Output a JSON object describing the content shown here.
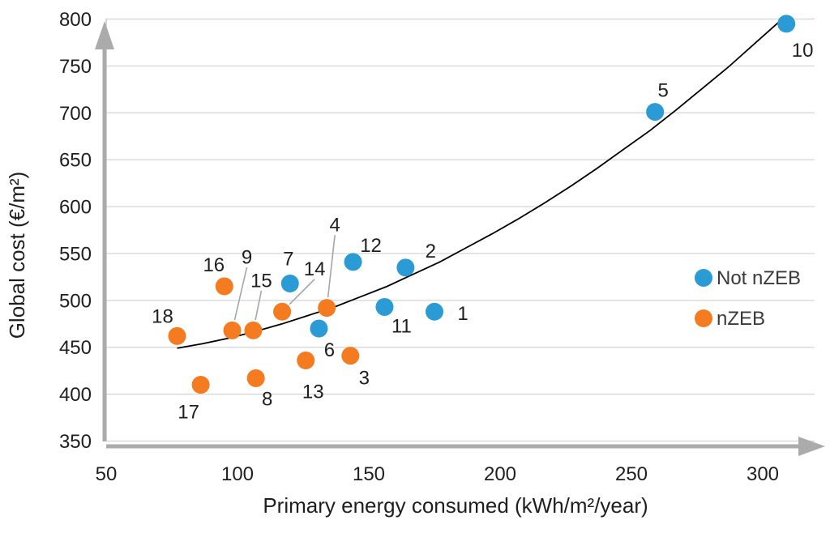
{
  "chart_data": {
    "type": "scatter",
    "title": "",
    "xlabel": "Primary energy consumed (kWh/m²/year)",
    "ylabel": "Global cost (€/m²)",
    "x_ticks": [
      50,
      100,
      150,
      200,
      250,
      300
    ],
    "y_ticks": [
      350,
      400,
      450,
      500,
      550,
      600,
      650,
      700,
      750,
      800
    ],
    "xlim": [
      50,
      310
    ],
    "ylim": [
      350,
      800
    ],
    "grid": "horizontal-only",
    "legend_position": "middle-right",
    "colors": {
      "not_nzeb": "#2b9bd6",
      "nzeb": "#f47b20",
      "gridline": "#d9d9d9",
      "axis_line": "#bfbfbf",
      "axis_arrow": "#ababab",
      "trendline": "#000000",
      "leader_line": "#a6a6a6",
      "text": "#1f1f1f"
    },
    "series": [
      {
        "name": "Not nZEB",
        "color": "#2b9bd6",
        "points": [
          {
            "id": "1",
            "x": 175,
            "y": 488,
            "label_dx": 35,
            "label_dy": 2,
            "leader": false
          },
          {
            "id": "2",
            "x": 164,
            "y": 535,
            "label_dx": 31,
            "label_dy": -21,
            "leader": false
          },
          {
            "id": "5",
            "x": 259,
            "y": 701,
            "label_dx": 10,
            "label_dy": -27,
            "leader": false
          },
          {
            "id": "6",
            "x": 131,
            "y": 470,
            "label_dx": 13,
            "label_dy": 26,
            "leader": false
          },
          {
            "id": "7",
            "x": 120,
            "y": 518,
            "label_dx": -2,
            "label_dy": -31,
            "leader": false
          },
          {
            "id": "10",
            "x": 309,
            "y": 795,
            "label_dx": 20,
            "label_dy": 32,
            "leader": false
          },
          {
            "id": "11",
            "x": 156,
            "y": 493,
            "label_dx": 21,
            "label_dy": 23,
            "leader": false
          },
          {
            "id": "12",
            "x": 144,
            "y": 541,
            "label_dx": 22,
            "label_dy": -21,
            "leader": false
          }
        ]
      },
      {
        "name": "nZEB",
        "color": "#f47b20",
        "points": [
          {
            "id": "3",
            "x": 143,
            "y": 441,
            "label_dx": 17,
            "label_dy": 27,
            "leader": false
          },
          {
            "id": "4",
            "x": 134,
            "y": 492,
            "label_dx": 10,
            "label_dy": -103,
            "leader": true
          },
          {
            "id": "8",
            "x": 107,
            "y": 417,
            "label_dx": 14,
            "label_dy": 25,
            "leader": false
          },
          {
            "id": "9",
            "x": 98,
            "y": 468,
            "label_dx": 18,
            "label_dy": -91,
            "leader": true
          },
          {
            "id": "13",
            "x": 126,
            "y": 436,
            "label_dx": 9,
            "label_dy": 38,
            "leader": false
          },
          {
            "id": "14",
            "x": 117,
            "y": 488,
            "label_dx": 40,
            "label_dy": -53,
            "leader": true
          },
          {
            "id": "15",
            "x": 106,
            "y": 468,
            "label_dx": 10,
            "label_dy": -62,
            "leader": true
          },
          {
            "id": "16",
            "x": 95,
            "y": 515,
            "label_dx": -13,
            "label_dy": -27,
            "leader": false
          },
          {
            "id": "17",
            "x": 86,
            "y": 410,
            "label_dx": -15,
            "label_dy": 33,
            "leader": false
          },
          {
            "id": "18",
            "x": 77,
            "y": 462,
            "label_dx": -18,
            "label_dy": -25,
            "leader": false
          }
        ]
      }
    ],
    "trendline": {
      "type": "polynomial",
      "color": "#000000",
      "points": [
        [
          77,
          449
        ],
        [
          87,
          454
        ],
        [
          97,
          460
        ],
        [
          107,
          467
        ],
        [
          117,
          475
        ],
        [
          127,
          484
        ],
        [
          137,
          493
        ],
        [
          147,
          504
        ],
        [
          157,
          515
        ],
        [
          167,
          528
        ],
        [
          177,
          541
        ],
        [
          187,
          556
        ],
        [
          197,
          571
        ],
        [
          207,
          587
        ],
        [
          217,
          604
        ],
        [
          227,
          622
        ],
        [
          237,
          641
        ],
        [
          247,
          661
        ],
        [
          257,
          681
        ],
        [
          267,
          703
        ],
        [
          277,
          726
        ],
        [
          287,
          749
        ],
        [
          297,
          774
        ],
        [
          307,
          799
        ]
      ]
    }
  }
}
